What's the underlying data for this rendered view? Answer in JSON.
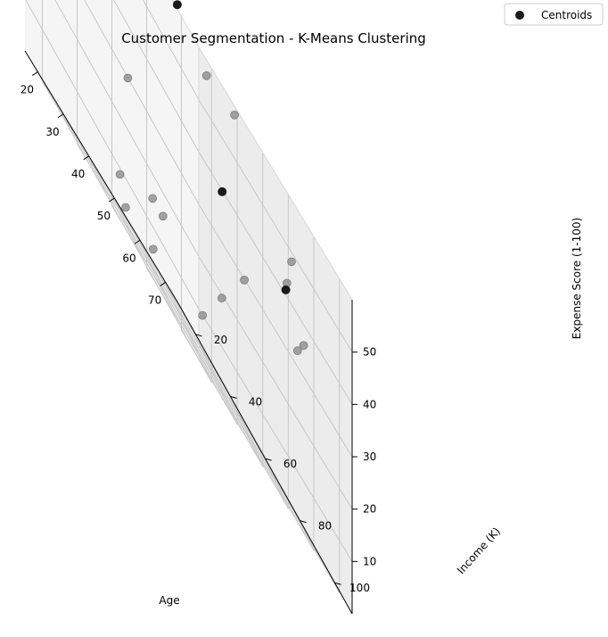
{
  "chart_data": {
    "type": "scatter",
    "title": "Customer Segmentation - K-Means Clustering",
    "xlabel": "Age",
    "ylabel": "Income (K)",
    "zlabel": "Expense Score (1-100)",
    "x_ticks": [
      "20",
      "30",
      "40",
      "50",
      "60",
      "70"
    ],
    "y_ticks": [
      "20",
      "40",
      "60",
      "80",
      "100"
    ],
    "z_ticks": [
      "10",
      "20",
      "30",
      "40",
      "50"
    ],
    "xlim": [
      15,
      75
    ],
    "ylim": [
      10,
      110
    ],
    "zlim": [
      0,
      60
    ],
    "grid": true,
    "legend": {
      "position": "top-right",
      "entries": [
        "Centroids"
      ]
    },
    "series": [
      {
        "role": "customers",
        "color": "#8c8c8c",
        "points": [
          {
            "x": 23,
            "y": 15,
            "z": 46
          },
          {
            "x": 40,
            "y": 30,
            "z": 52
          },
          {
            "x": 33,
            "y": 88,
            "z": 56
          },
          {
            "x": 63,
            "y": 60,
            "z": 56
          },
          {
            "x": 54,
            "y": 106,
            "z": 48
          },
          {
            "x": 59,
            "y": 96,
            "z": 42
          },
          {
            "x": 71,
            "y": 88,
            "z": 35
          },
          {
            "x": 55,
            "y": 108,
            "z": 33
          },
          {
            "x": 60,
            "y": 70,
            "z": 28
          },
          {
            "x": 43,
            "y": 28,
            "z": 28
          },
          {
            "x": 58,
            "y": 60,
            "z": 17
          },
          {
            "x": 50,
            "y": 32,
            "z": 13
          },
          {
            "x": 52,
            "y": 35,
            "z": 13
          },
          {
            "x": 42,
            "y": 25,
            "z": 7
          },
          {
            "x": 60,
            "y": 46,
            "z": 7
          },
          {
            "x": 57,
            "y": 22,
            "z": 3
          },
          {
            "x": 51,
            "y": 15,
            "z": 2
          }
        ]
      },
      {
        "name": "Centroids",
        "color": "#1a1a1a",
        "points": [
          {
            "x": 27,
            "y": 80,
            "z": 60
          },
          {
            "x": 50,
            "y": 72,
            "z": 38
          },
          {
            "x": 64,
            "y": 88,
            "z": 40
          }
        ]
      }
    ]
  }
}
